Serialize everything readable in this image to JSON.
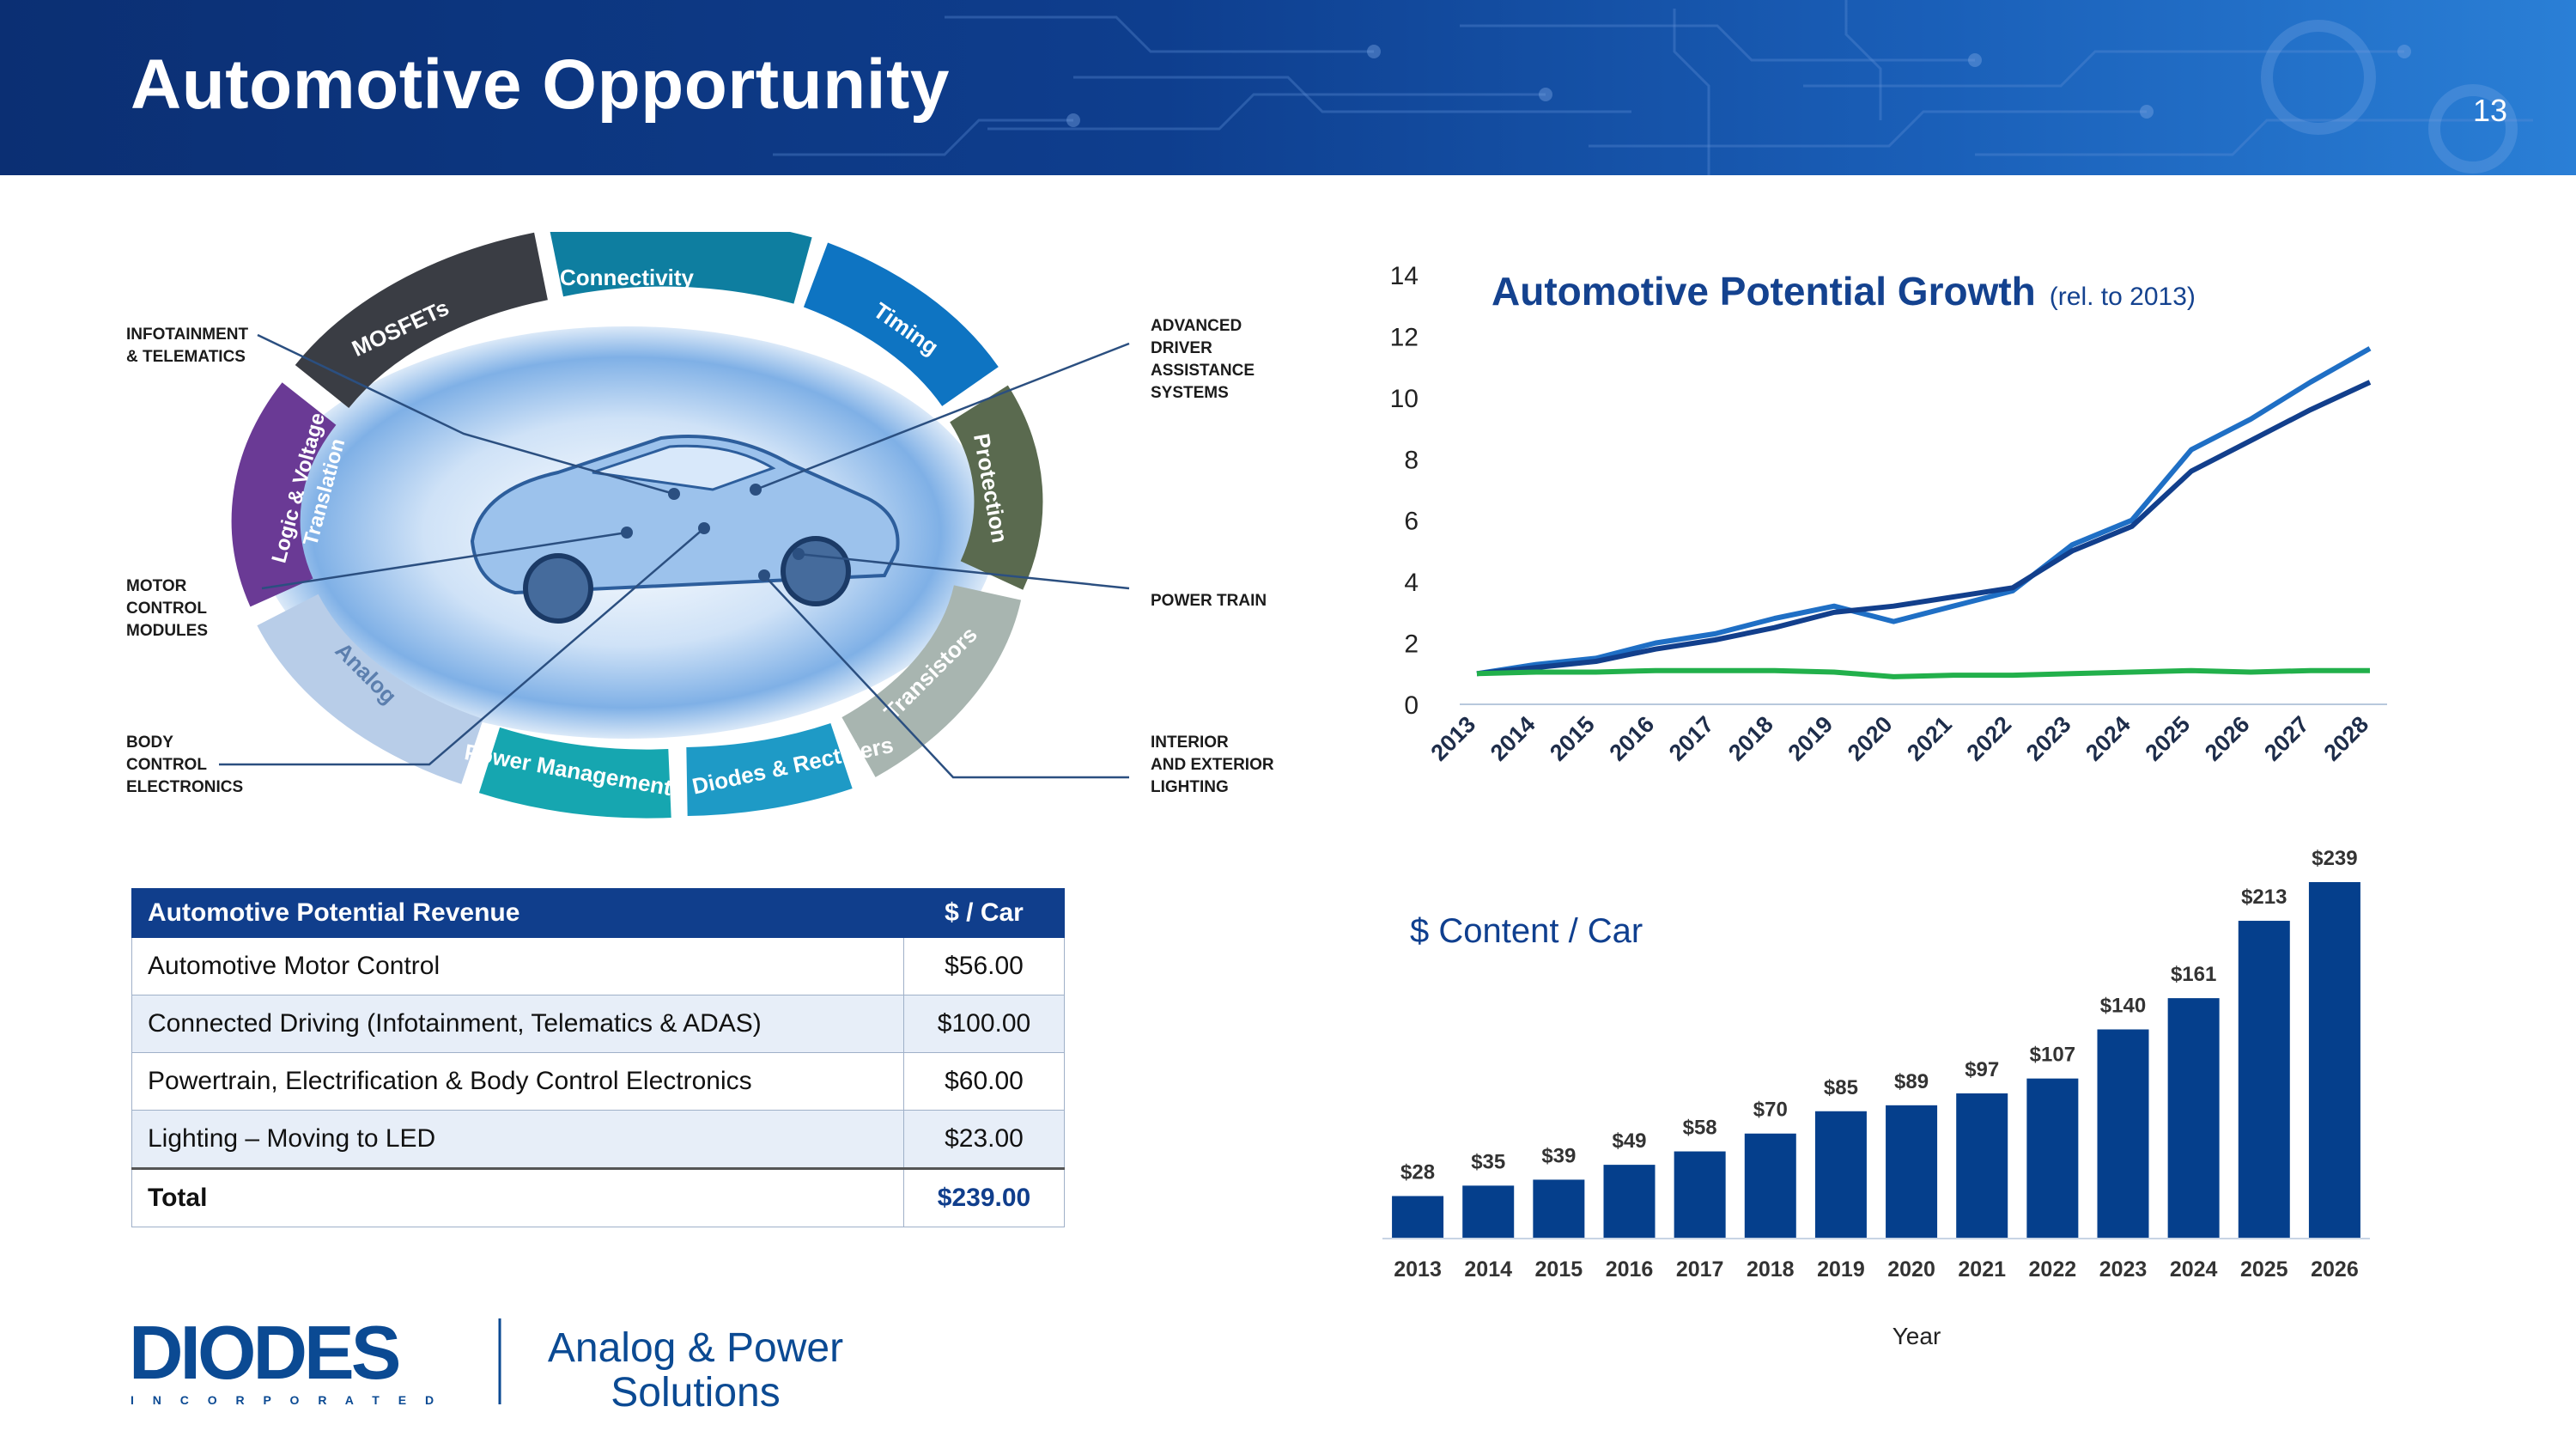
{
  "slide": {
    "title": "Automotive Opportunity",
    "page_number": "13"
  },
  "diagram": {
    "segments": [
      "Connectivity",
      "Timing",
      "Protection",
      "Transistors",
      "Diodes & Rectifiers",
      "Power Management",
      "Analog",
      "Logic & Voltage",
      "Translation",
      "MOSFETs"
    ],
    "callouts": {
      "infotainment": [
        "INFOTAINMENT",
        "& TELEMATICS"
      ],
      "motor": [
        "MOTOR",
        "CONTROL",
        "MODULES"
      ],
      "body": [
        "BODY",
        "CONTROL",
        "ELECTRONICS"
      ],
      "adas": [
        "ADVANCED",
        "DRIVER",
        "ASSISTANCE",
        "SYSTEMS"
      ],
      "power_train": [
        "POWER TRAIN"
      ],
      "lighting": [
        "INTERIOR",
        "AND EXTERIOR",
        "LIGHTING"
      ]
    }
  },
  "revenue_table": {
    "headers": [
      "Automotive Potential Revenue",
      "$ / Car"
    ],
    "rows": [
      [
        "Automotive Motor Control",
        "$56.00"
      ],
      [
        "Connected Driving (Infotainment, Telematics & ADAS)",
        "$100.00"
      ],
      [
        "Powertrain, Electrification & Body Control Electronics",
        "$60.00"
      ],
      [
        "Lighting – Moving to LED",
        "$23.00"
      ]
    ],
    "total": [
      "Total",
      "$239.00"
    ]
  },
  "logo": {
    "wordmark": "DIODES",
    "sub": "I N C O R P O R A T E D",
    "tagline_line1": "Analog & Power",
    "tagline_line2": "Solutions"
  },
  "chart_data": [
    {
      "type": "line",
      "title": "Automotive Potential Growth",
      "subtitle": "(rel. to 2013)",
      "x": [
        "2013",
        "2014",
        "2015",
        "2016",
        "2017",
        "2018",
        "2019",
        "2020",
        "2021",
        "2022",
        "2023",
        "2024",
        "2025",
        "2026",
        "2027",
        "2028"
      ],
      "ylim": [
        0,
        14
      ],
      "yticks": [
        0,
        2,
        4,
        6,
        8,
        10,
        12,
        14
      ],
      "grid": false,
      "colors": [
        "#1f6fc5",
        "#123f8c",
        "#22b04b"
      ],
      "series": [
        {
          "values": [
            1.0,
            1.3,
            1.5,
            2.0,
            2.3,
            2.8,
            3.2,
            2.7,
            3.2,
            3.7,
            5.2,
            6.0,
            8.3,
            9.3,
            10.5,
            11.6
          ]
        },
        {
          "values": [
            1.0,
            1.2,
            1.4,
            1.8,
            2.1,
            2.5,
            3.0,
            3.2,
            3.5,
            3.8,
            5.0,
            5.8,
            7.6,
            8.6,
            9.6,
            10.5
          ]
        },
        {
          "values": [
            1.0,
            1.05,
            1.05,
            1.1,
            1.1,
            1.1,
            1.05,
            0.9,
            0.95,
            0.95,
            1.0,
            1.05,
            1.1,
            1.05,
            1.1,
            1.1
          ]
        }
      ]
    },
    {
      "type": "bar",
      "title": "$ Content / Car",
      "xlabel": "Year",
      "categories": [
        "2013",
        "2014",
        "2015",
        "2016",
        "2017",
        "2018",
        "2019",
        "2020",
        "2021",
        "2022",
        "2023",
        "2024",
        "2025",
        "2026"
      ],
      "values": [
        28,
        35,
        39,
        49,
        58,
        70,
        85,
        89,
        97,
        107,
        140,
        161,
        213,
        239
      ],
      "labels": [
        "$28",
        "$35",
        "$39",
        "$49",
        "$58",
        "$70",
        "$85",
        "$89",
        "$97",
        "$107",
        "$140",
        "$161",
        "$213",
        "$239"
      ],
      "ylim": [
        0,
        239
      ],
      "color": "#053f8c"
    }
  ]
}
